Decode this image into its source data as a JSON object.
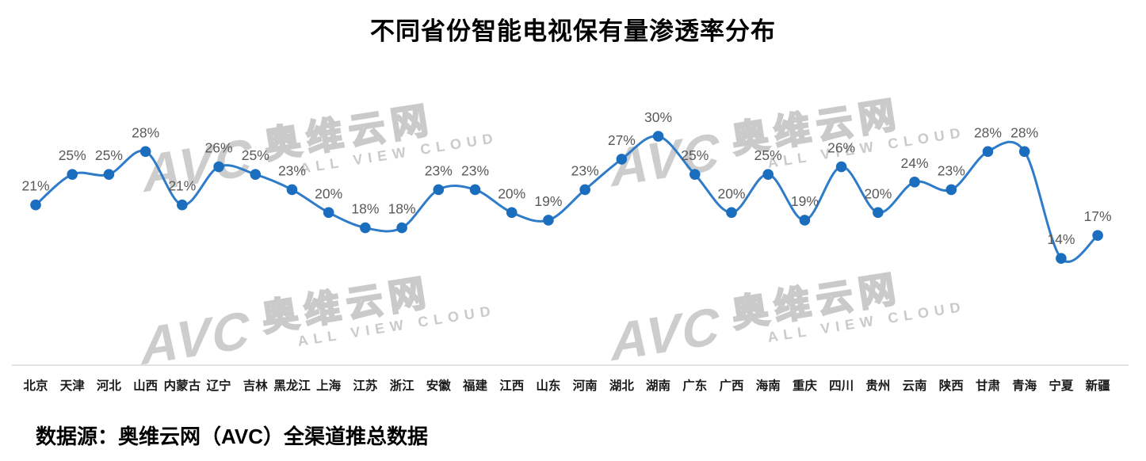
{
  "title": "不同省份智能电视保有量渗透率分布",
  "source_note": "数据源：奥维云网（AVC）全渠道推总数据",
  "watermark": {
    "logo": "AVC",
    "brand": "奥维云网",
    "subtitle": "ALL VIEW CLOUD"
  },
  "colors": {
    "line": "#2e7cc9",
    "marker": "#1b6dbd",
    "data_label": "#595959",
    "axis_line": "#d9d9d9",
    "axis_text": "#1a1a1a",
    "watermark": "#c8c8c8"
  },
  "chart_data": {
    "type": "line",
    "title": "不同省份智能电视保有量渗透率分布",
    "categories": [
      "北京",
      "天津",
      "河北",
      "山西",
      "内蒙古",
      "辽宁",
      "吉林",
      "黑龙江",
      "上海",
      "江苏",
      "浙江",
      "安徽",
      "福建",
      "江西",
      "山东",
      "河南",
      "湖北",
      "湖南",
      "广东",
      "广西",
      "海南",
      "重庆",
      "四川",
      "贵州",
      "云南",
      "陕西",
      "甘肃",
      "青海",
      "宁夏",
      "新疆"
    ],
    "values": [
      21,
      25,
      25,
      28,
      21,
      26,
      25,
      23,
      20,
      18,
      18,
      23,
      23,
      20,
      19,
      23,
      27,
      30,
      25,
      20,
      25,
      19,
      26,
      20,
      24,
      23,
      28,
      28,
      14,
      17
    ],
    "unit": "%",
    "xlabel": "",
    "ylabel": "",
    "ylim": [
      0,
      33
    ],
    "grid": false,
    "legend": "none",
    "smooth": true,
    "data_labels": true
  }
}
